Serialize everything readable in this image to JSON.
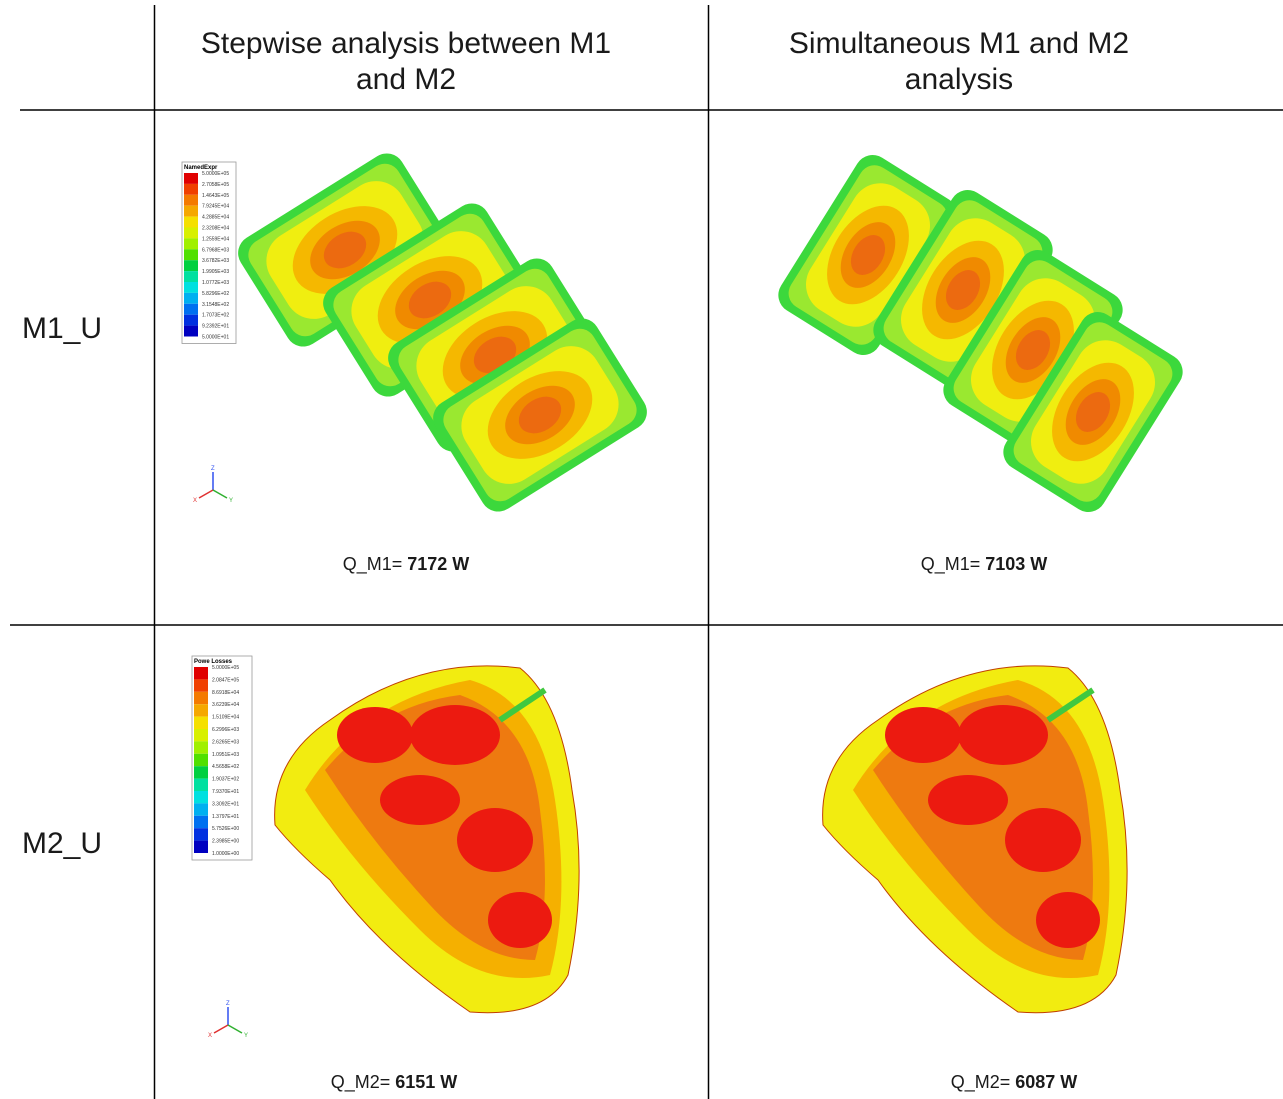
{
  "header": {
    "columns": [
      "Stepwise analysis between M1 and M2",
      "Simultaneous M1 and M2 analysis"
    ]
  },
  "rows": [
    {
      "label": "M1_U",
      "cells": [
        {
          "legend": {
            "title": "NamedExpr",
            "labels": [
              "5.0000E+05",
              "2.7058E+05",
              "1.4643E+05",
              "7.9245E+04",
              "4.2885E+04",
              "2.3208E+04",
              "1.2559E+04",
              "6.7968E+03",
              "3.6782E+03",
              "1.9905E+03",
              "1.0772E+03",
              "5.8296E+02",
              "3.1548E+02",
              "1.7073E+02",
              "9.2392E+01",
              "5.0000E+01"
            ]
          },
          "axes": [
            "Z",
            "X",
            "Y"
          ],
          "caption": {
            "name": "Q_M1=",
            "value": 7172,
            "unit": "W"
          }
        },
        {
          "caption": {
            "name": "Q_M1=",
            "value": 7103,
            "unit": "W"
          }
        }
      ]
    },
    {
      "label": "M2_U",
      "cells": [
        {
          "legend": {
            "title": "Powe Losses",
            "labels": [
              "5.0000E+05",
              "2.0847E+05",
              "8.6918E+04",
              "3.6239E+04",
              "1.5109E+04",
              "6.2996E+03",
              "2.6265E+03",
              "1.0951E+03",
              "4.5658E+02",
              "1.9037E+02",
              "7.9370E+01",
              "3.3092E+01",
              "1.3797E+01",
              "5.7526E+00",
              "2.3985E+00",
              "1.0000E+00"
            ]
          },
          "axes": [
            "Z",
            "X",
            "Y"
          ],
          "caption": {
            "name": "Q_M2=",
            "value": 6151,
            "unit": "W"
          }
        },
        {
          "caption": {
            "name": "Q_M2=",
            "value": 6087,
            "unit": "W"
          }
        }
      ]
    }
  ]
}
